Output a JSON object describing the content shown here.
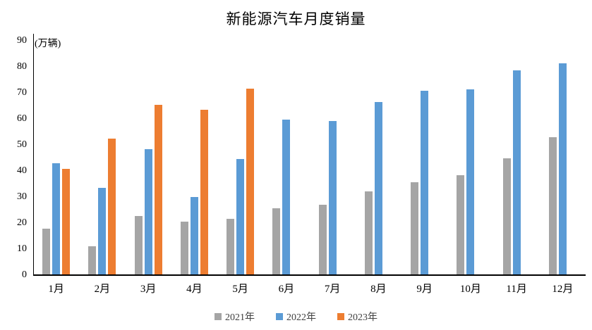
{
  "header": {
    "title": "新能源汽车月度销量",
    "unit_label": "(万辆)"
  },
  "colors": {
    "series_2021": "#A5A5A5",
    "series_2022": "#5B9BD5",
    "series_2023": "#ED7D31",
    "axis": "#000000",
    "legend_text": "#404040"
  },
  "chart_data": {
    "type": "bar",
    "title": "新能源汽车月度销量",
    "ylabel": "(万辆)",
    "xlabel": "",
    "ylim": [
      0,
      90
    ],
    "ytick_step": 10,
    "yticks": [
      90,
      80,
      70,
      60,
      50,
      40,
      30,
      20,
      10,
      0
    ],
    "grid": false,
    "legend_position": "bottom",
    "categories": [
      "1月",
      "2月",
      "3月",
      "4月",
      "5月",
      "6月",
      "7月",
      "8月",
      "9月",
      "10月",
      "11月",
      "12月"
    ],
    "series": [
      {
        "name": "2021年",
        "color": "#A5A5A5",
        "values": [
          17.9,
          11.0,
          22.6,
          20.6,
          21.7,
          25.6,
          27.1,
          32.1,
          35.7,
          38.3,
          45.0,
          53.1
        ]
      },
      {
        "name": "2022年",
        "color": "#5B9BD5",
        "values": [
          43.1,
          33.4,
          48.4,
          29.9,
          44.7,
          59.6,
          59.3,
          66.6,
          70.8,
          71.4,
          78.6,
          81.4
        ]
      },
      {
        "name": "2023年",
        "color": "#ED7D31",
        "values": [
          40.8,
          52.5,
          65.3,
          63.6,
          71.7,
          null,
          null,
          null,
          null,
          null,
          null,
          null
        ]
      }
    ]
  }
}
